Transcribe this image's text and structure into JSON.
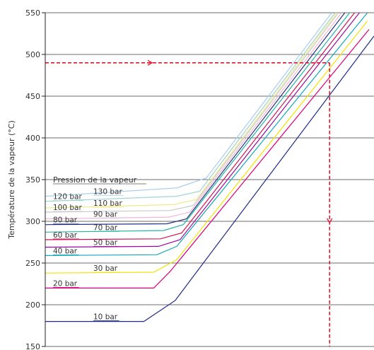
{
  "chart_data": {
    "type": "line",
    "title": "",
    "xlabel": "",
    "ylabel": "Température de la vapeur (°C)",
    "ylim": [
      150,
      550
    ],
    "yticks": [
      150,
      200,
      250,
      300,
      350,
      400,
      450,
      500,
      550
    ],
    "xlim": [
      0,
      100
    ],
    "grid": "horizontal",
    "legend_title": "Pression de la vapeur",
    "series": [
      {
        "name": "10 bar",
        "color": "#1e2a8c",
        "points": [
          [
            0,
            180
          ],
          [
            30,
            180
          ],
          [
            39.5,
            205
          ],
          [
            100,
            522
          ]
        ]
      },
      {
        "name": "20 bar",
        "color": "#d8007d",
        "points": [
          [
            0,
            220
          ],
          [
            33,
            220
          ],
          [
            38,
            240
          ],
          [
            98.5,
            530
          ]
        ]
      },
      {
        "name": "30 bar",
        "color": "#f2e400",
        "points": [
          [
            0,
            238
          ],
          [
            33,
            239
          ],
          [
            40,
            254
          ],
          [
            98,
            540
          ]
        ]
      },
      {
        "name": "40 bar",
        "color": "#12a8b6",
        "points": [
          [
            0,
            259
          ],
          [
            34,
            260
          ],
          [
            40,
            270
          ],
          [
            98,
            550
          ]
        ]
      },
      {
        "name": "50 bar",
        "color": "#9a0aa0",
        "points": [
          [
            0,
            269
          ],
          [
            34.5,
            270
          ],
          [
            41,
            278
          ],
          [
            97,
            557
          ]
        ]
      },
      {
        "name": "60 bar",
        "color": "#cf1355",
        "points": [
          [
            0,
            278
          ],
          [
            35,
            279
          ],
          [
            41.5,
            286
          ],
          [
            95.5,
            557
          ]
        ]
      },
      {
        "name": "70 bar",
        "color": "#1fb5a3",
        "points": [
          [
            0,
            287
          ],
          [
            36,
            289
          ],
          [
            42,
            296
          ],
          [
            94,
            557
          ]
        ]
      },
      {
        "name": "80 bar",
        "color": "#252e82",
        "points": [
          [
            0,
            296
          ],
          [
            37,
            297
          ],
          [
            43,
            303
          ],
          [
            92.5,
            557
          ]
        ]
      },
      {
        "name": "90 bar",
        "color": "#f4b7d3",
        "points": [
          [
            0,
            303
          ],
          [
            37.5,
            305
          ],
          [
            44,
            311
          ],
          [
            91.5,
            557
          ]
        ]
      },
      {
        "name": "100 bar",
        "color": "#c8c8c8",
        "points": [
          [
            0,
            311
          ],
          [
            38,
            313
          ],
          [
            45,
            319
          ],
          [
            90.5,
            557
          ]
        ]
      },
      {
        "name": "110 bar",
        "color": "#f0ea8c",
        "points": [
          [
            0,
            316
          ],
          [
            39,
            320
          ],
          [
            46,
            326
          ],
          [
            90,
            557
          ]
        ]
      },
      {
        "name": "120 bar",
        "color": "#9ed3cf",
        "points": [
          [
            0,
            324
          ],
          [
            40,
            330
          ],
          [
            47,
            336
          ],
          [
            89.5,
            557
          ]
        ]
      },
      {
        "name": "130 bar",
        "color": "#a7cdec",
        "points": [
          [
            0,
            330
          ],
          [
            40,
            340
          ],
          [
            49,
            352
          ],
          [
            88.5,
            557
          ]
        ]
      }
    ],
    "reading_guides": {
      "color": "#e0182d",
      "horizontal": {
        "y": 490,
        "x_from": 0,
        "x_to": 86.5
      },
      "vertical": {
        "x": 86.5,
        "y_from": 490,
        "y_to": 150
      }
    }
  }
}
